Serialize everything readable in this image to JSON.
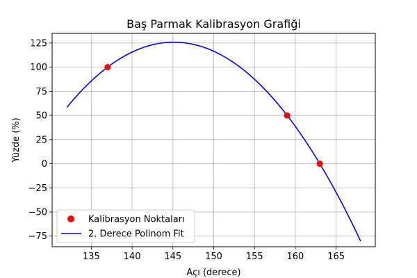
{
  "chart_data": {
    "type": "scatter",
    "title": "Baş Parmak Kalibrasyon Grafiği",
    "xlabel": "Açı (derece)",
    "ylabel": "Yüzde (%)",
    "xlim": [
      130.2,
      169.8
    ],
    "ylim": [
      -86,
      135
    ],
    "xticks": [
      135,
      140,
      145,
      150,
      155,
      160,
      165
    ],
    "yticks": [
      -75,
      -50,
      -25,
      0,
      25,
      50,
      75,
      100,
      125
    ],
    "grid": true,
    "legend_position": "bottom-left",
    "series": [
      {
        "name": "Kalibrasyon Noktaları",
        "kind": "scatter",
        "color": "#ff0000",
        "points": [
          [
            137,
            100
          ],
          [
            159,
            50
          ],
          [
            163,
            0
          ]
        ]
      },
      {
        "name": "2. Derece Polinom Fit",
        "kind": "line",
        "color": "#0000ff",
        "fit": "quadratic through calibration points",
        "x_range": [
          132,
          168
        ]
      }
    ]
  }
}
